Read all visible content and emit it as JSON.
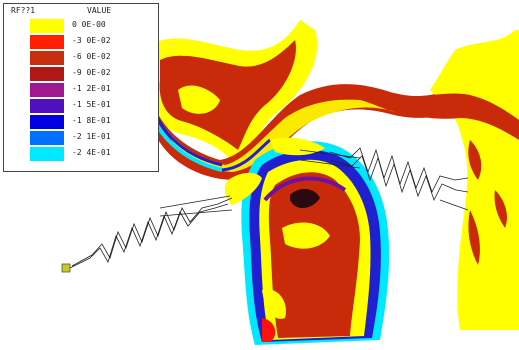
{
  "legend": {
    "header_left": "RF??1",
    "header_right": "VALUE",
    "entries": [
      {
        "value": "0 0E-00",
        "color": "#ffff00"
      },
      {
        "value": "-3 0E-02",
        "color": "#ff2000"
      },
      {
        "value": "-6 0E-02",
        "color": "#c43010"
      },
      {
        "value": "-9 0E-02",
        "color": "#b01818"
      },
      {
        "value": "-1 2E-01",
        "color": "#a01890"
      },
      {
        "value": "-1 5E-01",
        "color": "#5010c0"
      },
      {
        "value": "-1 8E-01",
        "color": "#0000e0"
      },
      {
        "value": "-2 1E-01",
        "color": "#0070ff"
      },
      {
        "value": "-2 4E-01",
        "color": "#00e8ff"
      }
    ]
  },
  "colors": {
    "yellow": "#ffff00",
    "red": "#c82a0a",
    "bright_red": "#ff1010",
    "blue": "#2020d0",
    "cyan": "#00e8ff",
    "purple": "#7010a0",
    "spring_line": "#222222",
    "anchor": "#c8c820"
  }
}
